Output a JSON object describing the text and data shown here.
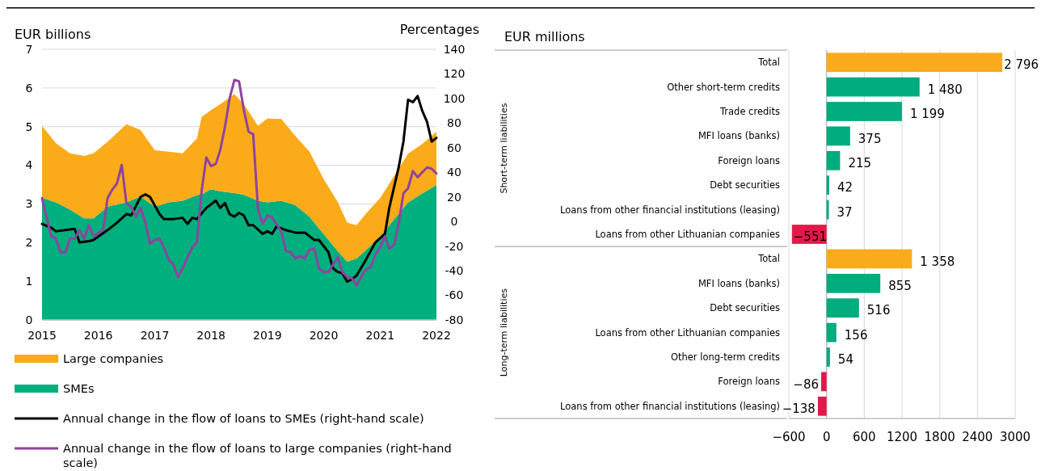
{
  "chart_data": [
    {
      "type": "area",
      "ylabel": "EUR billions",
      "y2label": "Percentages",
      "stacked": true,
      "legend": "bottom",
      "grid": "y",
      "xlim": [
        "2015-01",
        "2022-01"
      ],
      "xticks": [
        "2015",
        "2016",
        "2017",
        "2018",
        "2019",
        "2020",
        "2021",
        "2022"
      ],
      "ylim": [
        0,
        7
      ],
      "yticks": [
        0,
        1,
        2,
        3,
        4,
        5,
        6,
        7
      ],
      "y2lim": [
        -80,
        140
      ],
      "y2ticks": [
        -80,
        -60,
        -40,
        -20,
        0,
        20,
        40,
        60,
        80,
        100,
        120,
        140
      ],
      "x": [
        "2015-01",
        "2015-04",
        "2015-07",
        "2015-10",
        "2015-12",
        "2016-03",
        "2016-07",
        "2016-10",
        "2017-01",
        "2017-04",
        "2017-07",
        "2017-10",
        "2017-11",
        "2018-01",
        "2018-03",
        "2018-06",
        "2018-08",
        "2018-11",
        "2019-01",
        "2019-04",
        "2019-07",
        "2019-10",
        "2020-01",
        "2020-04",
        "2020-06",
        "2020-08",
        "2020-10",
        "2021-01",
        "2021-04",
        "2021-07",
        "2021-10",
        "2022-01"
      ],
      "series": [
        {
          "name": "SMEs",
          "type": "area",
          "color": "#00af7e",
          "values": [
            3.16,
            3.04,
            2.86,
            2.63,
            2.63,
            2.93,
            3.04,
            3.19,
            2.93,
            3.04,
            3.08,
            3.23,
            3.25,
            3.38,
            3.33,
            3.28,
            3.24,
            3.08,
            3.04,
            3.08,
            2.97,
            2.67,
            2.22,
            1.78,
            1.51,
            1.59,
            1.81,
            2.15,
            2.6,
            3.04,
            3.27,
            3.49
          ]
        },
        {
          "name": "Large companies",
          "type": "area",
          "color": "#fbab19",
          "values": [
            1.86,
            1.53,
            1.45,
            1.61,
            1.68,
            1.68,
            2.02,
            1.72,
            1.46,
            1.31,
            1.23,
            1.46,
            2.0,
            2.05,
            2.25,
            2.56,
            2.34,
            1.94,
            2.17,
            2.12,
            1.79,
            1.68,
            1.42,
            1.27,
            1.01,
            0.86,
            0.94,
            1.0,
            1.12,
            1.26,
            1.28,
            1.38
          ]
        },
        {
          "name": "Annual change in the flow of loans to SMEs (right-hand scale)",
          "type": "line",
          "axis": "y2",
          "color": "#000000",
          "x": [
            "2015-01",
            "2015-03",
            "2015-04",
            "2015-06",
            "2015-08",
            "2015-09",
            "2015-11",
            "2015-12",
            "2016-03",
            "2016-05",
            "2016-07",
            "2016-08",
            "2016-10",
            "2016-11",
            "2016-12",
            "2017-02",
            "2017-03",
            "2017-05",
            "2017-07",
            "2017-08",
            "2017-09",
            "2017-10",
            "2017-12",
            "2018-02",
            "2018-03",
            "2018-04",
            "2018-05",
            "2018-06",
            "2018-07",
            "2018-08",
            "2018-09",
            "2018-10",
            "2018-12",
            "2019-01",
            "2019-02",
            "2019-03",
            "2019-05",
            "2019-07",
            "2019-09",
            "2019-11",
            "2019-12",
            "2020-02",
            "2020-03",
            "2020-04",
            "2020-05",
            "2020-06",
            "2020-07",
            "2020-08",
            "2020-10",
            "2020-12",
            "2021-02",
            "2021-03",
            "2021-05",
            "2021-06",
            "2021-07",
            "2021-08",
            "2021-09",
            "2021-10",
            "2021-11",
            "2021-12",
            "2022-01"
          ],
          "values": [
            -2,
            -5,
            -8,
            -7,
            -6,
            -17,
            -16,
            -15,
            -7,
            -1,
            6,
            5,
            20,
            22,
            20,
            6,
            2,
            2,
            3,
            -2,
            3,
            2,
            11,
            17,
            11,
            15,
            6,
            4,
            7,
            5,
            -3,
            -3,
            -10,
            -8,
            -10,
            -4,
            -7,
            -9,
            -9,
            -15,
            -15,
            -25,
            -38,
            -41,
            -42,
            -49,
            -47,
            -44,
            -31,
            -17,
            -10,
            11,
            44,
            65,
            99,
            97,
            102,
            90,
            81,
            65,
            68
          ]
        },
        {
          "name": "Annual change in the flow of loans to large companies (right-hand scale)",
          "type": "line",
          "axis": "y2",
          "color": "#8e44a0",
          "x": [
            "2015-01",
            "2015-03",
            "2015-04",
            "2015-05",
            "2015-06",
            "2015-07",
            "2015-08",
            "2015-09",
            "2015-10",
            "2015-11",
            "2015-12",
            "2016-02",
            "2016-03",
            "2016-04",
            "2016-05",
            "2016-06",
            "2016-07",
            "2016-08",
            "2016-09",
            "2016-10",
            "2016-11",
            "2016-12",
            "2017-01",
            "2017-02",
            "2017-03",
            "2017-04",
            "2017-05",
            "2017-06",
            "2017-07",
            "2017-08",
            "2017-09",
            "2017-10",
            "2017-11",
            "2017-12",
            "2018-01",
            "2018-02",
            "2018-03",
            "2018-04",
            "2018-05",
            "2018-06",
            "2018-07",
            "2018-08",
            "2018-09",
            "2018-10",
            "2018-11",
            "2018-12",
            "2019-01",
            "2019-02",
            "2019-04",
            "2019-05",
            "2019-06",
            "2019-07",
            "2019-08",
            "2019-09",
            "2019-10",
            "2019-11",
            "2019-12",
            "2020-01",
            "2020-02",
            "2020-03",
            "2020-04",
            "2020-05",
            "2020-06",
            "2020-07",
            "2020-08",
            "2020-09",
            "2020-10",
            "2020-11",
            "2020-12",
            "2021-01",
            "2021-02",
            "2021-03",
            "2021-04",
            "2021-05",
            "2021-06",
            "2021-07",
            "2021-08",
            "2021-09",
            "2021-10",
            "2021-11",
            "2021-12",
            "2022-01"
          ],
          "values": [
            19,
            -12,
            -14,
            -25,
            -25,
            -14,
            -14,
            -7,
            -14,
            -3,
            -12,
            -7,
            19,
            26,
            31,
            46,
            15,
            12,
            4,
            11,
            -1,
            -18,
            -15,
            -14,
            -21,
            -31,
            -35,
            -45,
            -38,
            -29,
            -21,
            -17,
            25,
            52,
            45,
            47,
            58,
            77,
            100,
            115,
            114,
            91,
            73,
            71,
            10,
            -2,
            5,
            3,
            -8,
            -24,
            -25,
            -30,
            -28,
            -30,
            -23,
            -22,
            -38,
            -41,
            -41,
            -35,
            -29,
            -41,
            -45,
            -46,
            -52,
            -45,
            -39,
            -37,
            -27,
            -21,
            -12,
            -22,
            -19,
            -2,
            23,
            27,
            41,
            36,
            40,
            44,
            43,
            39
          ]
        }
      ]
    },
    {
      "type": "bar",
      "orientation": "horizontal",
      "xlabel": "EUR millions",
      "grid": "x",
      "annotations": [
        "Short-term liabilities",
        "Long-term liabilities"
      ],
      "categories": [
        "Total",
        "Other short-term credits",
        "Trade credits",
        "MFI loans (banks)",
        "Foreign loans",
        "Debt securities",
        "Loans from other financial institutions (leasing)",
        "Loans from other Lithuanian companies",
        "Total",
        "MFI loans (banks)",
        "Debt securities",
        "Loans from other Lithuanian companies",
        "Other long-term credits",
        "Foreign loans",
        "Loans from other financial institutions (leasing)"
      ],
      "values": [
        2796,
        1480,
        1199,
        375,
        215,
        42,
        37,
        -551,
        1358,
        855,
        516,
        156,
        54,
        -86,
        -138
      ],
      "value_labels": [
        "2 796",
        "1 480",
        "1 199",
        "375",
        "215",
        "42",
        "37",
        "−551",
        "1 358",
        "855",
        "516",
        "156",
        "54",
        "−86",
        "−138"
      ],
      "colors": [
        "#f9ab1c",
        "#00ab7e",
        "#00ab7e",
        "#00ab7e",
        "#00ab7e",
        "#00ab7e",
        "#00ab7e",
        "#e2194a",
        "#f9ab1c",
        "#00ab7e",
        "#00ab7e",
        "#00ab7e",
        "#00ab7e",
        "#e2194a",
        "#e2194a"
      ],
      "xlim": [
        -600,
        3000
      ],
      "xticks": [
        {
          "value": -600,
          "label": "−600"
        },
        0,
        600,
        1200,
        1800,
        2400,
        3000
      ]
    }
  ]
}
